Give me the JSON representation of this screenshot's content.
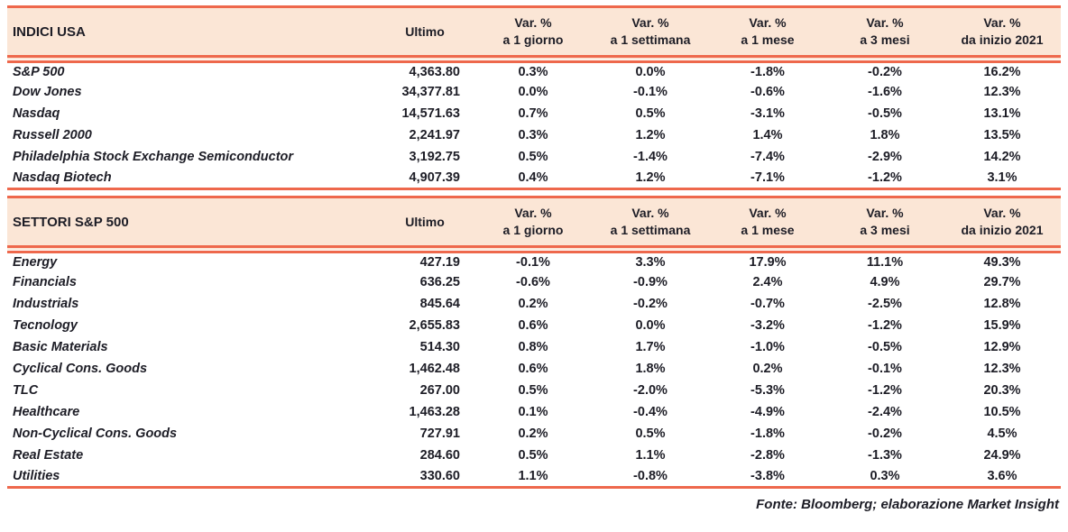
{
  "colors": {
    "accent": "#EE684C",
    "header_bg": "#FBE6D6",
    "text": "#1D1D26"
  },
  "column_headers": {
    "ultimo": "Ultimo",
    "var": "Var. %",
    "periods": [
      "a 1 giorno",
      "a 1 settimana",
      "a 1 mese",
      "a 3 mesi",
      "da inizio 2021"
    ]
  },
  "footer": "Fonte: Bloomberg; elaborazione Market Insight",
  "chart_data": [
    {
      "type": "table",
      "title": "INDICI USA",
      "columns": [
        "Ultimo",
        "Var. % a 1 giorno",
        "Var. % a 1 settimana",
        "Var. % a 1 mese",
        "Var. % a 3 mesi",
        "Var. % da inizio 2021"
      ],
      "rows": [
        {
          "label": "S&P 500",
          "ultimo": "4,363.80",
          "vars": [
            "0.3%",
            "0.0%",
            "-1.8%",
            "-0.2%",
            "16.2%"
          ]
        },
        {
          "label": "Dow Jones",
          "ultimo": "34,377.81",
          "vars": [
            "0.0%",
            "-0.1%",
            "-0.6%",
            "-1.6%",
            "12.3%"
          ]
        },
        {
          "label": "Nasdaq",
          "ultimo": "14,571.63",
          "vars": [
            "0.7%",
            "0.5%",
            "-3.1%",
            "-0.5%",
            "13.1%"
          ]
        },
        {
          "label": "Russell 2000",
          "ultimo": "2,241.97",
          "vars": [
            "0.3%",
            "1.2%",
            "1.4%",
            "1.8%",
            "13.5%"
          ]
        },
        {
          "label": "Philadelphia Stock Exchange Semiconductor",
          "ultimo": "3,192.75",
          "vars": [
            "0.5%",
            "-1.4%",
            "-7.4%",
            "-2.9%",
            "14.2%"
          ]
        },
        {
          "label": "Nasdaq Biotech",
          "ultimo": "4,907.39",
          "vars": [
            "0.4%",
            "1.2%",
            "-7.1%",
            "-1.2%",
            "3.1%"
          ]
        }
      ]
    },
    {
      "type": "table",
      "title": "SETTORI S&P 500",
      "columns": [
        "Ultimo",
        "Var. % a 1 giorno",
        "Var. % a 1 settimana",
        "Var. % a 1 mese",
        "Var. % a 3 mesi",
        "Var. % da inizio 2021"
      ],
      "rows": [
        {
          "label": "Energy",
          "ultimo": "427.19",
          "vars": [
            "-0.1%",
            "3.3%",
            "17.9%",
            "11.1%",
            "49.3%"
          ]
        },
        {
          "label": "Financials",
          "ultimo": "636.25",
          "vars": [
            "-0.6%",
            "-0.9%",
            "2.4%",
            "4.9%",
            "29.7%"
          ]
        },
        {
          "label": "Industrials",
          "ultimo": "845.64",
          "vars": [
            "0.2%",
            "-0.2%",
            "-0.7%",
            "-2.5%",
            "12.8%"
          ]
        },
        {
          "label": "Tecnology",
          "ultimo": "2,655.83",
          "vars": [
            "0.6%",
            "0.0%",
            "-3.2%",
            "-1.2%",
            "15.9%"
          ]
        },
        {
          "label": "Basic Materials",
          "ultimo": "514.30",
          "vars": [
            "0.8%",
            "1.7%",
            "-1.0%",
            "-0.5%",
            "12.9%"
          ]
        },
        {
          "label": "Cyclical Cons. Goods",
          "ultimo": "1,462.48",
          "vars": [
            "0.6%",
            "1.8%",
            "0.2%",
            "-0.1%",
            "12.3%"
          ]
        },
        {
          "label": "TLC",
          "ultimo": "267.00",
          "vars": [
            "0.5%",
            "-2.0%",
            "-5.3%",
            "-1.2%",
            "20.3%"
          ]
        },
        {
          "label": "Healthcare",
          "ultimo": "1,463.28",
          "vars": [
            "0.1%",
            "-0.4%",
            "-4.9%",
            "-2.4%",
            "10.5%"
          ]
        },
        {
          "label": "Non-Cyclical Cons. Goods",
          "ultimo": "727.91",
          "vars": [
            "0.2%",
            "0.5%",
            "-1.8%",
            "-0.2%",
            "4.5%"
          ]
        },
        {
          "label": "Real Estate",
          "ultimo": "284.60",
          "vars": [
            "0.5%",
            "1.1%",
            "-2.8%",
            "-1.3%",
            "24.9%"
          ]
        },
        {
          "label": "Utilities",
          "ultimo": "330.60",
          "vars": [
            "1.1%",
            "-0.8%",
            "-3.8%",
            "0.3%",
            "3.6%"
          ]
        }
      ]
    }
  ]
}
